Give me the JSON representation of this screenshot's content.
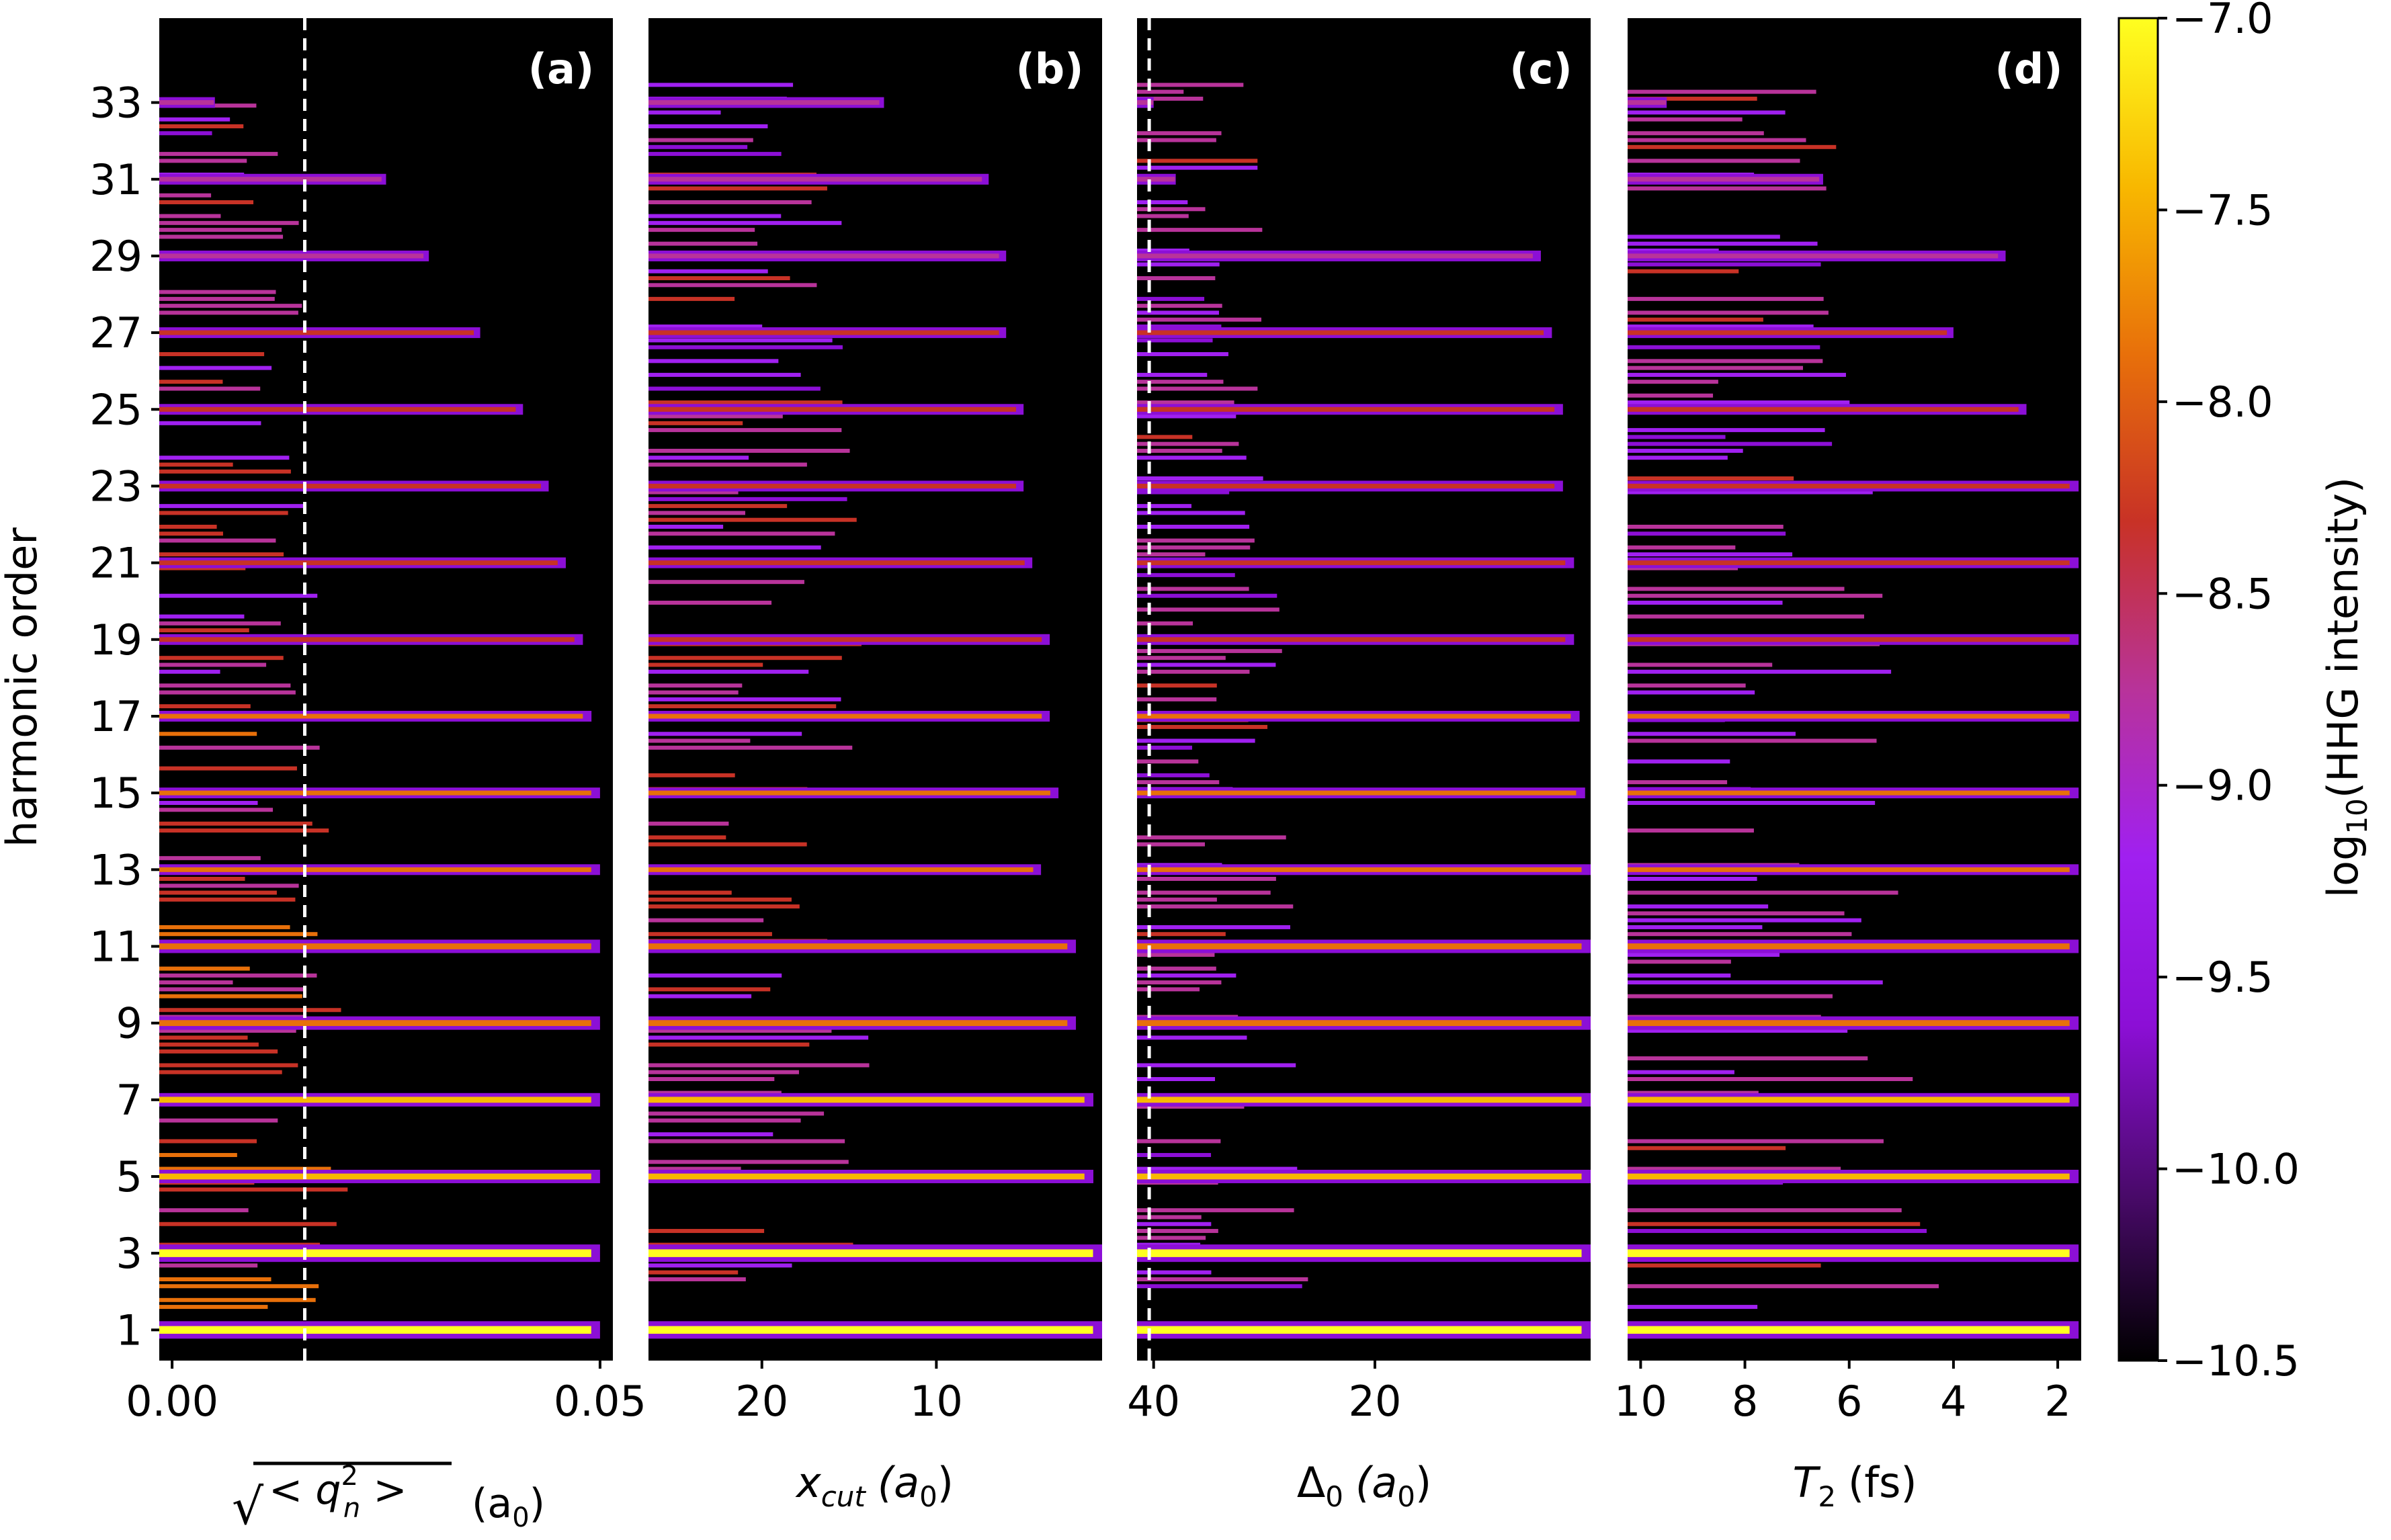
{
  "figure": {
    "y_axis_label": "harmonic order",
    "y_ticks": [
      "1",
      "3",
      "5",
      "7",
      "9",
      "11",
      "13",
      "15",
      "17",
      "19",
      "21",
      "23",
      "25",
      "27",
      "29",
      "31",
      "33"
    ],
    "y_tick_values": [
      1,
      3,
      5,
      7,
      9,
      11,
      13,
      15,
      17,
      19,
      21,
      23,
      25,
      27,
      29,
      31,
      33
    ],
    "y_range": [
      0.2,
      35.2
    ],
    "colors": {
      "background": "#000000",
      "dashed_line": "#ffffff"
    }
  },
  "chart_data": [
    {
      "type": "heatmap",
      "panel_label": "(a)",
      "xlabel": "√<q_n²> (a0)",
      "xlabel_parts": {
        "root": "√",
        "open": "< q",
        "sup": "2",
        "sub": "n",
        "close": " >",
        "unit": "(a",
        "unit_sub": "0",
        "unit_close": ")"
      },
      "x_ticks": [
        "0.00",
        "0.05"
      ],
      "x_tick_values": [
        0.0,
        0.05
      ],
      "xlim": [
        -0.0015,
        0.0515
      ],
      "dashed_line_x": 0.0155,
      "harmonic_extent_x": [
        [
          1,
          0.05
        ],
        [
          3,
          0.05
        ],
        [
          5,
          0.05
        ],
        [
          7,
          0.05
        ],
        [
          9,
          0.05
        ],
        [
          11,
          0.05
        ],
        [
          13,
          0.05
        ],
        [
          15,
          0.05
        ],
        [
          17,
          0.049
        ],
        [
          19,
          0.048
        ],
        [
          21,
          0.046
        ],
        [
          23,
          0.044
        ],
        [
          25,
          0.041
        ],
        [
          27,
          0.036
        ],
        [
          29,
          0.03
        ],
        [
          31,
          0.025
        ],
        [
          33,
          0.005
        ]
      ],
      "background_extent_x": 0.022
    },
    {
      "type": "heatmap",
      "panel_label": "(b)",
      "xlabel": "x_cut (a0)",
      "xlabel_parts": {
        "var": "x",
        "sub": "cut",
        "unit": "(a",
        "unit_sub": "0",
        "unit_close": ")"
      },
      "x_ticks": [
        "20",
        "10"
      ],
      "x_tick_values": [
        20,
        10
      ],
      "xlim": [
        26.5,
        0.5
      ],
      "harmonic_extent_x": [
        [
          1,
          0.5
        ],
        [
          3,
          0.5
        ],
        [
          5,
          1
        ],
        [
          7,
          1
        ],
        [
          9,
          2
        ],
        [
          11,
          2
        ],
        [
          13,
          4
        ],
        [
          15,
          3
        ],
        [
          17,
          3.5
        ],
        [
          19,
          3.5
        ],
        [
          21,
          4.5
        ],
        [
          23,
          5
        ],
        [
          25,
          5
        ],
        [
          27,
          6
        ],
        [
          29,
          6
        ],
        [
          31,
          7
        ],
        [
          33,
          13
        ]
      ],
      "background_extent_x": 13
    },
    {
      "type": "heatmap",
      "panel_label": "(c)",
      "xlabel": "Δ0 (a0)",
      "xlabel_parts": {
        "var": "Δ",
        "sub": "0",
        "unit": "(a",
        "unit_sub": "0",
        "unit_close": ")"
      },
      "x_ticks": [
        "40",
        "20"
      ],
      "x_tick_values": [
        40,
        20
      ],
      "xlim": [
        41.5,
        0.5
      ],
      "dashed_line_x": 40.4,
      "harmonic_extent_x": [
        [
          1,
          0.5
        ],
        [
          3,
          0.5
        ],
        [
          5,
          0.5
        ],
        [
          7,
          0.5
        ],
        [
          9,
          0.5
        ],
        [
          11,
          0.5
        ],
        [
          13,
          0.5
        ],
        [
          15,
          1
        ],
        [
          17,
          1.5
        ],
        [
          19,
          2
        ],
        [
          21,
          2
        ],
        [
          23,
          3
        ],
        [
          25,
          3
        ],
        [
          27,
          4
        ],
        [
          29,
          5
        ],
        [
          31,
          38
        ],
        [
          33,
          40
        ]
      ],
      "background_extent_x": 25
    },
    {
      "type": "heatmap",
      "panel_label": "(d)",
      "xlabel": "T2 (fs)",
      "xlabel_parts": {
        "var": "T",
        "sub": "2",
        "unit": "(fs)"
      },
      "x_ticks": [
        "10",
        "8",
        "6",
        "4",
        "2"
      ],
      "x_tick_values": [
        10,
        8,
        6,
        4,
        2
      ],
      "xlim": [
        10.25,
        1.55
      ],
      "harmonic_extent_x": [
        [
          1,
          1.6
        ],
        [
          3,
          1.6
        ],
        [
          5,
          1.6
        ],
        [
          7,
          1.6
        ],
        [
          9,
          1.6
        ],
        [
          11,
          1.6
        ],
        [
          13,
          1.6
        ],
        [
          15,
          1.6
        ],
        [
          17,
          1.6
        ],
        [
          19,
          1.6
        ],
        [
          21,
          1.6
        ],
        [
          23,
          1.6
        ],
        [
          25,
          2.6
        ],
        [
          27,
          4.0
        ],
        [
          29,
          3.0
        ],
        [
          31,
          6.5
        ],
        [
          33,
          9.5
        ]
      ],
      "background_extent_x": 4.0
    },
    {
      "type": "colorbar",
      "label": "log10(HHG intensity)",
      "label_parts": {
        "pre": "log",
        "sub": "10",
        "post": "(HHG intensity)"
      },
      "ticks": [
        "−7.0",
        "−7.5",
        "−8.0",
        "−8.5",
        "−9.0",
        "−9.5",
        "−10.0",
        "−10.5"
      ],
      "tick_values": [
        -7.0,
        -7.5,
        -8.0,
        -8.5,
        -9.0,
        -9.5,
        -10.0,
        -10.5
      ],
      "range": [
        -10.5,
        -7.0
      ],
      "colormap": [
        "#000000",
        "#4a0a6b",
        "#8c0fd6",
        "#a020f0",
        "#b8339a",
        "#c83226",
        "#e8700a",
        "#f8b800",
        "#ffff20"
      ]
    }
  ]
}
